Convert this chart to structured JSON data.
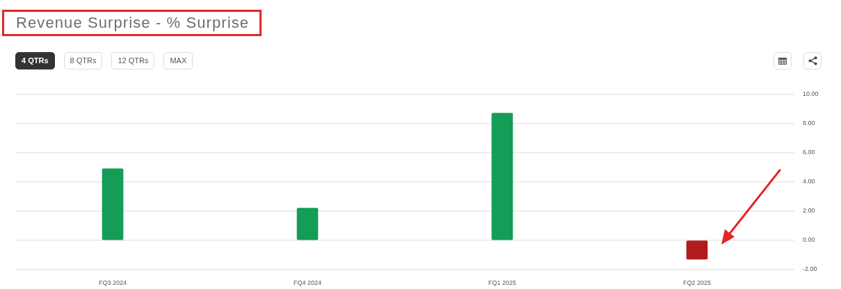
{
  "chart_data": {
    "type": "bar",
    "title": "Revenue Surprise - % Surprise",
    "categories": [
      "FQ3 2024",
      "FQ4 2024",
      "FQ1 2025",
      "FQ2 2025"
    ],
    "values": [
      4.9,
      2.2,
      8.7,
      -1.3
    ],
    "colors": [
      "#139d57",
      "#139d57",
      "#139d57",
      "#b21b1d"
    ],
    "ylim": [
      -2,
      10
    ],
    "yticks": [
      {
        "value": -2,
        "label": "-2.00"
      },
      {
        "value": 0,
        "label": "0.00"
      },
      {
        "value": 2,
        "label": "2.00"
      },
      {
        "value": 4,
        "label": "4.00"
      },
      {
        "value": 6,
        "label": "6.00"
      },
      {
        "value": 8,
        "label": "8.00"
      },
      {
        "value": 10,
        "label": "10.00"
      }
    ],
    "grid": "y",
    "annotations": [
      "4 QTRs",
      "8 QTRs",
      "12 QTRs",
      "MAX"
    ]
  }
}
